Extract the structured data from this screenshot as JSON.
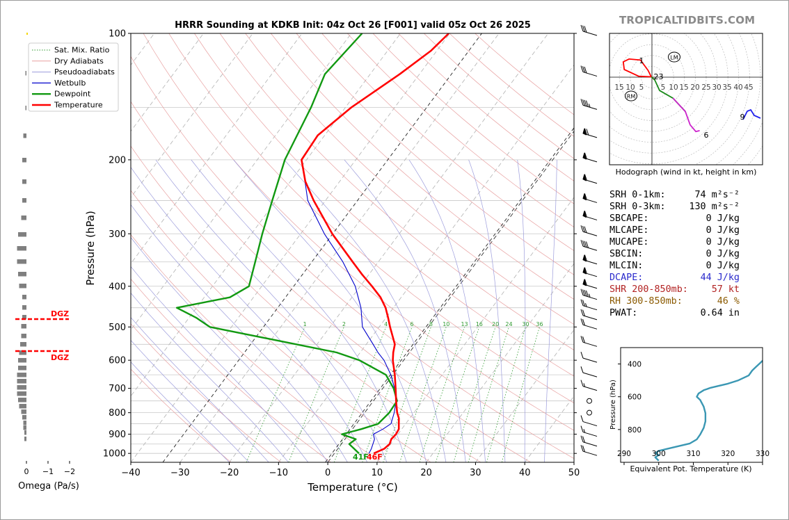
{
  "header": {
    "title": "HRRR Sounding at KDKB Init: 04z Oct 26 [F001] valid 05z Oct 26 2025",
    "watermark": "TROPICALTIDBITS.COM"
  },
  "colors": {
    "temperature": "#ff0000",
    "dewpoint": "#119911",
    "wetbulb": "#0000cc",
    "theta_e": "#3a97b3",
    "dcape": "#2a2acc",
    "shear": "#b22222",
    "rh": "#8b5a00",
    "dgz": "#ff0000",
    "hodo_0_3": "#ff0000",
    "hodo_3_6": "#1a8a1a",
    "hodo_6_9": "#cc22cc",
    "hodo_9_12": "#2222ee"
  },
  "skewt": {
    "xlabel": "Temperature (°C)",
    "ylabel": "Pressure (hPa)",
    "x_ticks": [
      "−40",
      "−30",
      "−20",
      "−10",
      "0",
      "10",
      "20",
      "30",
      "40",
      "50"
    ],
    "y_ticks": [
      "100",
      "200",
      "300",
      "400",
      "500",
      "600",
      "700",
      "800",
      "900",
      "1000"
    ],
    "mixing_ratio_labels": [
      "1",
      "2",
      "4",
      "6",
      "8",
      "10",
      "13",
      "16",
      "20",
      "24",
      "30",
      "36"
    ],
    "surface_dewpoint_label": "41F",
    "surface_temperature_label": "46F",
    "legend": [
      {
        "label": "Sat. Mix. Ratio",
        "style": "dotted-green"
      },
      {
        "label": "Dry Adiabats",
        "style": "red-thin"
      },
      {
        "label": "Pseudoadiabats",
        "style": "blue-thin"
      },
      {
        "label": "Wetbulb",
        "style": "blue"
      },
      {
        "label": "Dewpoint",
        "style": "green"
      },
      {
        "label": "Temperature",
        "style": "red"
      }
    ]
  },
  "omega": {
    "xlabel": "Omega (Pa/s)",
    "x_ticks": [
      "0",
      "−1",
      "−2"
    ],
    "dgz_label_top": "DGZ",
    "dgz_label_bottom": "DGZ"
  },
  "hodograph": {
    "caption": "Hodograph (wind in kt, height in km)",
    "ring_labels": [
      "15",
      "10",
      "5",
      "5",
      "10",
      "15",
      "20",
      "25",
      "30",
      "35",
      "40",
      "45"
    ],
    "height_labels": [
      "1",
      "2",
      "3",
      "6",
      "9"
    ],
    "lm_label": "LM",
    "rm_label": "RM"
  },
  "indices": [
    {
      "label": "SRH 0-1km:",
      "value": "74 m²s⁻²",
      "color": "#000000"
    },
    {
      "label": "SRH 0-3km:",
      "value": "130 m²s⁻²",
      "color": "#000000"
    },
    {
      "label": "SBCAPE:",
      "value": "0 J/kg",
      "color": "#000000"
    },
    {
      "label": "MLCAPE:",
      "value": "0 J/kg",
      "color": "#000000"
    },
    {
      "label": "MUCAPE:",
      "value": "0 J/kg",
      "color": "#000000"
    },
    {
      "label": "SBCIN:",
      "value": "0 J/kg",
      "color": "#000000"
    },
    {
      "label": "MLCIN:",
      "value": "0 J/kg",
      "color": "#000000"
    },
    {
      "label": "DCAPE:",
      "value": "44 J/kg",
      "color": "#2a2acc"
    },
    {
      "label": "SHR 200-850mb:",
      "value": "57 kt",
      "color": "#b22222"
    },
    {
      "label": "RH 300-850mb:",
      "value": "46 %",
      "color": "#8b5a00"
    },
    {
      "label": "PWAT:",
      "value": "0.64 in",
      "color": "#000000"
    }
  ],
  "theta_e_panel": {
    "xlabel": "Equivalent Pot. Temperature (K)",
    "ylabel": "Pressure (hPa)",
    "x_ticks": [
      "290",
      "300",
      "310",
      "320",
      "330"
    ],
    "y_ticks": [
      "400",
      "600",
      "800"
    ]
  },
  "chart_data": [
    {
      "type": "line",
      "title": "HRRR Sounding at KDKB Init: 04z Oct 26 [F001] valid 05z Oct 26 2025",
      "xlabel": "Temperature (°C)",
      "ylabel": "Pressure (hPa)",
      "xlim": [
        -40,
        50
      ],
      "ylim": [
        1050,
        100
      ],
      "y_scale": "log",
      "grid": true,
      "legend_position": "top-left",
      "series": [
        {
          "name": "Temperature",
          "points": [
            [
              1000,
              8
            ],
            [
              975,
              9.4
            ],
            [
              950,
              9.8
            ],
            [
              925,
              9.4
            ],
            [
              900,
              9.6
            ],
            [
              875,
              9.4
            ],
            [
              850,
              8.6
            ],
            [
              825,
              7.8
            ],
            [
              800,
              6.6
            ],
            [
              775,
              5.6
            ],
            [
              750,
              4.6
            ],
            [
              700,
              2.6
            ],
            [
              650,
              0.4
            ],
            [
              600,
              -2.2
            ],
            [
              575,
              -3.3
            ],
            [
              550,
              -4.2
            ],
            [
              500,
              -7.8
            ],
            [
              475,
              -9.6
            ],
            [
              450,
              -11.6
            ],
            [
              425,
              -14.2
            ],
            [
              400,
              -17.6
            ],
            [
              375,
              -21.4
            ],
            [
              350,
              -25.2
            ],
            [
              300,
              -33.6
            ],
            [
              250,
              -42.4
            ],
            [
              225,
              -47.0
            ],
            [
              200,
              -51.0
            ],
            [
              175,
              -51.4
            ],
            [
              150,
              -48.8
            ],
            [
              125,
              -44.0
            ],
            [
              110,
              -41.2
            ],
            [
              100,
              -40.2
            ]
          ]
        },
        {
          "name": "Dewpoint",
          "points": [
            [
              1000,
              5
            ],
            [
              950,
              1.6
            ],
            [
              925,
              2.2
            ],
            [
              900,
              -1.4
            ],
            [
              875,
              1.8
            ],
            [
              850,
              4.4
            ],
            [
              800,
              5.0
            ],
            [
              750,
              4.8
            ],
            [
              700,
              2.2
            ],
            [
              650,
              -1.4
            ],
            [
              600,
              -9.0
            ],
            [
              575,
              -14.8
            ],
            [
              550,
              -24.2
            ],
            [
              500,
              -44.4
            ],
            [
              475,
              -48.6
            ],
            [
              450,
              -54.0
            ],
            [
              425,
              -44.8
            ],
            [
              400,
              -42.6
            ],
            [
              350,
              -45.0
            ],
            [
              300,
              -47.8
            ],
            [
              250,
              -50.8
            ],
            [
              200,
              -54.4
            ],
            [
              150,
              -57.0
            ],
            [
              125,
              -59.2
            ],
            [
              100,
              -57.8
            ]
          ]
        },
        {
          "name": "Wetbulb",
          "points": [
            [
              1000,
              7
            ],
            [
              975,
              6.8
            ],
            [
              925,
              6.0
            ],
            [
              900,
              5.0
            ],
            [
              875,
              6.2
            ],
            [
              850,
              7.0
            ],
            [
              800,
              6.0
            ],
            [
              750,
              4.6
            ],
            [
              700,
              2.4
            ],
            [
              650,
              -0.4
            ],
            [
              600,
              -4.0
            ],
            [
              575,
              -6.4
            ],
            [
              550,
              -8.6
            ],
            [
              500,
              -13.4
            ],
            [
              450,
              -16.6
            ],
            [
              400,
              -21.0
            ],
            [
              350,
              -27.2
            ],
            [
              300,
              -35.2
            ],
            [
              250,
              -43.6
            ],
            [
              220,
              -47.8
            ]
          ]
        }
      ]
    },
    {
      "type": "line",
      "title": "",
      "xlabel": "Equivalent Pot. Temperature (K)",
      "ylabel": "Pressure (hPa)",
      "xlim": [
        289,
        330
      ],
      "ylim": [
        1000,
        300
      ],
      "grid": false,
      "series": [
        {
          "name": "",
          "points": [
            [
              300,
              990
            ],
            [
              299,
              970
            ],
            [
              300,
              955
            ],
            [
              299,
              945
            ],
            [
              300,
              930
            ],
            [
              304,
              910
            ],
            [
              309,
              885
            ],
            [
              311,
              860
            ],
            [
              312,
              830
            ],
            [
              313,
              790
            ],
            [
              313.5,
              750
            ],
            [
              313.5,
              700
            ],
            [
              313,
              660
            ],
            [
              312,
              620
            ],
            [
              311,
              600
            ],
            [
              311.5,
              580
            ],
            [
              313,
              560
            ],
            [
              315,
              545
            ],
            [
              317,
              535
            ],
            [
              320,
              520
            ],
            [
              323,
              500
            ],
            [
              326,
              470
            ],
            [
              327,
              440
            ],
            [
              328,
              420
            ],
            [
              329,
              400
            ],
            [
              330,
              380
            ],
            [
              331,
              360
            ],
            [
              332,
              345
            ]
          ]
        }
      ]
    },
    {
      "type": "line",
      "title": "",
      "xlabel": "",
      "ylabel": "",
      "xlim": [
        -15,
        45
      ],
      "ylim": [
        -35,
        18
      ],
      "series": [
        {
          "name": "",
          "points": [
            [
              -0.5,
              0.5
            ],
            [
              -2.0,
              3.5
            ],
            [
              -6.0,
              9.0
            ],
            [
              -12.0,
              9.5
            ],
            [
              -15.0,
              8.0
            ],
            [
              -14.5,
              4.0
            ],
            [
              -7.0,
              0.5
            ],
            [
              -0.3,
              0.2
            ],
            [
              1.5,
              -1.5
            ],
            [
              4.0,
              -7.0
            ],
            [
              11.0,
              -11.0
            ],
            [
              17.5,
              -18.0
            ],
            [
              20.0,
              -25.0
            ],
            [
              23.0,
              -28.5
            ],
            [
              25.0,
              -28.0
            ]
          ]
        }
      ]
    }
  ]
}
